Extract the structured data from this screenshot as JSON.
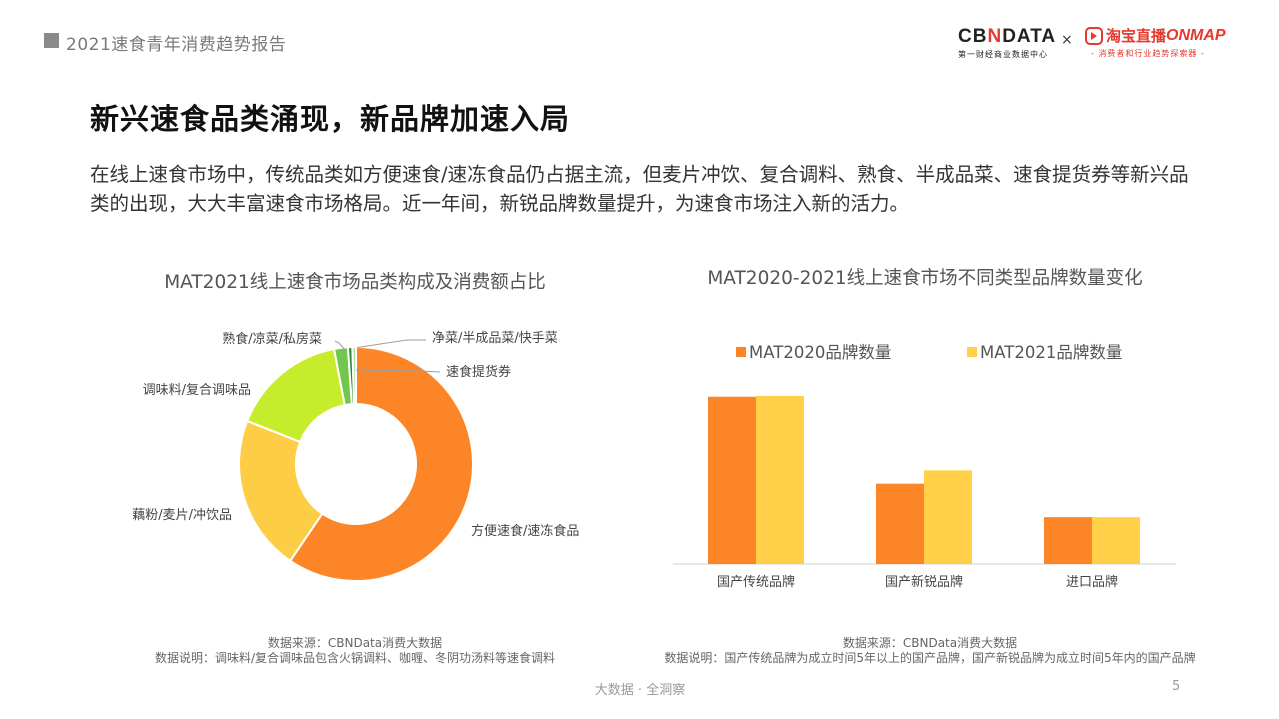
{
  "header": {
    "title": "2021速食青年消费趋势报告"
  },
  "logos": {
    "cbn_brand_a": "CB",
    "cbn_brand_x": "N",
    "cbn_brand_b": "DATA",
    "cbn_sub": "第一财经商业数据中心",
    "separator": "×",
    "tb_brand": "淘宝直播",
    "tb_onmap": "ONMAP",
    "tb_sub": "- 消费者和行业趋势探索器 -",
    "icon": "play-icon"
  },
  "page": {
    "title": "新兴速食品类涌现，新品牌加速入局",
    "description": "在线上速食市场中，传统品类如方便速食/速冻食品仍占据主流，但麦片冲饮、复合调料、熟食、半成品菜、速食提货券等新兴品类的出现，大大丰富速食市场格局。近一年间，新锐品牌数量提升，为速食市场注入新的活力。"
  },
  "chart_data": [
    {
      "type": "pie",
      "title": "MAT2021线上速食市场品类构成及消费额占比",
      "categories": [
        "方便速食/速冻食品",
        "藕粉/麦片/冲饮品",
        "调味料/复合调味品",
        "熟食/凉菜/私房菜",
        "净菜/半成品菜/快手菜",
        "速食提货券"
      ],
      "values": [
        59.5,
        21.5,
        16.0,
        1.9,
        0.6,
        0.5
      ],
      "colors": [
        "#fb8527",
        "#fdcd45",
        "#c7ec2c",
        "#71c64d",
        "#2e8b3c",
        "#b5e3a0"
      ]
    },
    {
      "type": "bar",
      "title": "MAT2020-2021线上速食市场不同类型品牌数量变化",
      "categories": [
        "国产传统品牌",
        "国产新锐品牌",
        "进口品牌"
      ],
      "series": [
        {
          "name": "MAT2020品牌数量",
          "values": [
            100,
            48,
            28
          ],
          "color": "#fb8527"
        },
        {
          "name": "MAT2021品牌数量",
          "values": [
            100.5,
            56,
            28
          ],
          "color": "#ffd048"
        }
      ],
      "ylim": [
        0,
        110
      ],
      "grid": false,
      "legend": "top"
    }
  ],
  "notes": {
    "left_source": "数据来源：CBNData消费大数据",
    "left_desc": "数据说明：调味料/复合调味品包含火锅调料、咖喱、冬阴功汤料等速食调料",
    "right_source": "数据来源：CBNData消费大数据",
    "right_desc": "数据说明：国产传统品牌为成立时间5年以上的国产品牌，国产新锐品牌为成立时间5年内的国产品牌"
  },
  "footer": {
    "slogan": "大数据 · 全洞察",
    "page_number": "5"
  }
}
